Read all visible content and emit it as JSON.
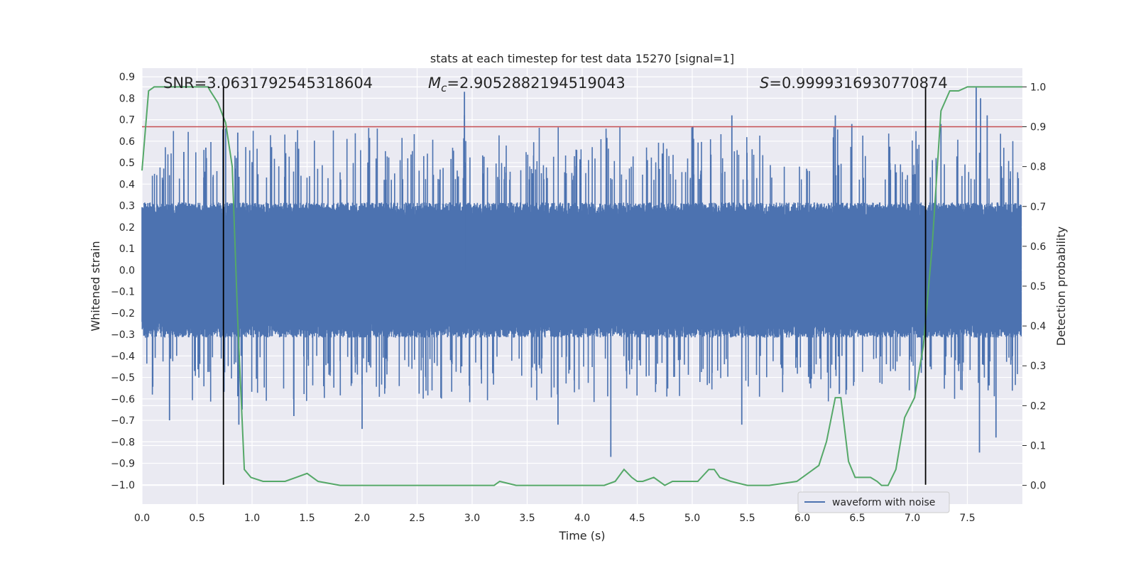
{
  "chart_data": {
    "type": "line",
    "title": "stats at each timestep for test data 15270 [signal=1]",
    "xlabel": "Time (s)",
    "ylabel": "Whitened strain",
    "ylabel_right": "Detection probability",
    "xlim": [
      0.0,
      8.0
    ],
    "ylim": [
      -1.09,
      0.94
    ],
    "ylim_right": [
      -0.047,
      1.047
    ],
    "xticks": [
      "0.0",
      "0.5",
      "1.0",
      "1.5",
      "2.0",
      "2.5",
      "3.0",
      "3.5",
      "4.0",
      "4.5",
      "5.0",
      "5.5",
      "6.0",
      "6.5",
      "7.0",
      "7.5"
    ],
    "yticks": [
      "0.9",
      "0.8",
      "0.7",
      "0.6",
      "0.5",
      "0.4",
      "0.3",
      "0.2",
      "0.1",
      "0.0",
      "−0.1",
      "−0.2",
      "−0.3",
      "−0.4",
      "−0.5",
      "−0.6",
      "−0.7",
      "−0.8",
      "−0.9",
      "−1.0"
    ],
    "yticks_right": [
      "1.0",
      "0.9",
      "0.8",
      "0.7",
      "0.6",
      "0.5",
      "0.4",
      "0.3",
      "0.2",
      "0.1",
      "0.0"
    ],
    "grid": true,
    "legend_position": "lower-right",
    "annotations": {
      "snr": "SNR=3.0631792545318604",
      "mc_symbol": "M",
      "mc_sub": "c",
      "mc_value": "=2.9052882194519043",
      "s_symbol": "S",
      "s_value": "=0.9999316930770874"
    },
    "series": [
      {
        "name": "waveform with noise",
        "color": "#4c72b0",
        "kind": "noise",
        "typical_envelope": [
          -0.3,
          0.3
        ],
        "peaks": [
          {
            "t": 0.25,
            "v": -0.7
          },
          {
            "t": 0.38,
            "v": 0.55
          },
          {
            "t": 0.58,
            "v": 0.57
          },
          {
            "t": 0.76,
            "v": 0.66
          },
          {
            "t": 0.87,
            "v": 0.64
          },
          {
            "t": 0.88,
            "v": -0.72
          },
          {
            "t": 0.91,
            "v": -0.65
          },
          {
            "t": 1.38,
            "v": -0.68
          },
          {
            "t": 2.0,
            "v": -0.74
          },
          {
            "t": 2.93,
            "v": 0.83
          },
          {
            "t": 2.93,
            "v": 0.72
          },
          {
            "t": 3.78,
            "v": -0.72
          },
          {
            "t": 4.26,
            "v": -0.87
          },
          {
            "t": 5.36,
            "v": 0.72
          },
          {
            "t": 5.45,
            "v": -0.72
          },
          {
            "t": 6.3,
            "v": 0.72
          },
          {
            "t": 6.45,
            "v": 0.68
          },
          {
            "t": 7.26,
            "v": 0.68
          },
          {
            "t": 7.58,
            "v": 0.85
          },
          {
            "t": 7.62,
            "v": 0.8
          },
          {
            "t": 7.61,
            "v": -0.85
          },
          {
            "t": 7.68,
            "v": 0.72
          },
          {
            "t": 7.76,
            "v": -0.78
          }
        ]
      },
      {
        "name": "detection probability",
        "color": "#55a868",
        "axis": "right",
        "x": [
          0.0,
          0.06,
          0.11,
          0.2,
          0.3,
          0.4,
          0.5,
          0.6,
          0.62,
          0.69,
          0.76,
          0.82,
          0.87,
          0.93,
          0.99,
          1.1,
          1.2,
          1.3,
          1.4,
          1.5,
          1.6,
          1.8,
          2.0,
          2.2,
          2.4,
          2.6,
          2.8,
          3.0,
          3.2,
          3.25,
          3.4,
          3.6,
          3.8,
          4.0,
          4.2,
          4.3,
          4.38,
          4.45,
          4.5,
          4.55,
          4.65,
          4.75,
          4.82,
          4.9,
          5.0,
          5.05,
          5.15,
          5.2,
          5.25,
          5.35,
          5.5,
          5.7,
          5.95,
          6.05,
          6.15,
          6.22,
          6.3,
          6.35,
          6.42,
          6.48,
          6.55,
          6.62,
          6.68,
          6.72,
          6.78,
          6.85,
          6.93,
          7.02,
          7.1,
          7.18,
          7.26,
          7.34,
          7.42,
          7.5,
          7.6,
          7.7,
          7.8,
          8.0
        ],
        "y": [
          0.79,
          0.99,
          1.0,
          1.0,
          1.0,
          1.0,
          1.0,
          1.0,
          0.99,
          0.96,
          0.91,
          0.8,
          0.41,
          0.04,
          0.02,
          0.01,
          0.01,
          0.01,
          0.02,
          0.03,
          0.01,
          0.0,
          0.0,
          0.0,
          0.0,
          0.0,
          0.0,
          0.0,
          0.0,
          0.01,
          0.0,
          0.0,
          0.0,
          0.0,
          0.0,
          0.01,
          0.04,
          0.02,
          0.01,
          0.01,
          0.02,
          0.0,
          0.01,
          0.01,
          0.01,
          0.01,
          0.04,
          0.04,
          0.02,
          0.01,
          0.0,
          0.0,
          0.01,
          0.03,
          0.05,
          0.11,
          0.22,
          0.22,
          0.06,
          0.02,
          0.02,
          0.02,
          0.01,
          0.0,
          0.0,
          0.04,
          0.17,
          0.22,
          0.35,
          0.6,
          0.94,
          0.99,
          0.99,
          1.0,
          1.0,
          1.0,
          1.0,
          1.0
        ]
      }
    ],
    "threshold": {
      "color": "#c44e52",
      "value": 0.9,
      "axis": "right"
    },
    "vlines": [
      {
        "t": 0.74
      },
      {
        "t": 7.12
      }
    ]
  }
}
